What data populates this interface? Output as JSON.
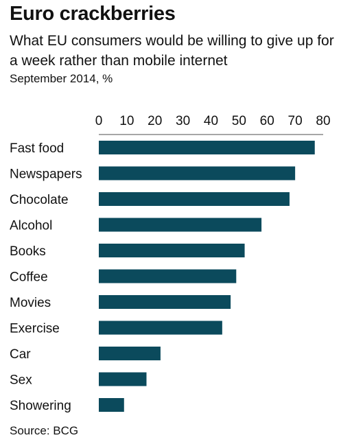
{
  "header": {
    "title": "Euro crackberries",
    "subtitle": "What EU consumers would be willing to give up for a week rather than mobile internet",
    "note": "September 2014, %"
  },
  "footer": {
    "source": "Source: BCG"
  },
  "colors": {
    "bar": "#0b4a5c",
    "gridline": "#4d4d4d"
  },
  "chart_data": {
    "type": "bar",
    "orientation": "horizontal",
    "title": "Euro crackberries",
    "subtitle": "What EU consumers would be willing to give up for a week rather than mobile internet",
    "unit": "%",
    "xlim": [
      0,
      80
    ],
    "ticks": [
      0,
      10,
      20,
      30,
      40,
      50,
      60,
      70,
      80
    ],
    "axis_position": "top",
    "grid": false,
    "categories": [
      "Fast food",
      "Newspapers",
      "Chocolate",
      "Alcohol",
      "Books",
      "Coffee",
      "Movies",
      "Exercise",
      "Car",
      "Sex",
      "Showering"
    ],
    "values": [
      77,
      70,
      68,
      58,
      52,
      49,
      47,
      44,
      22,
      17,
      9
    ]
  }
}
